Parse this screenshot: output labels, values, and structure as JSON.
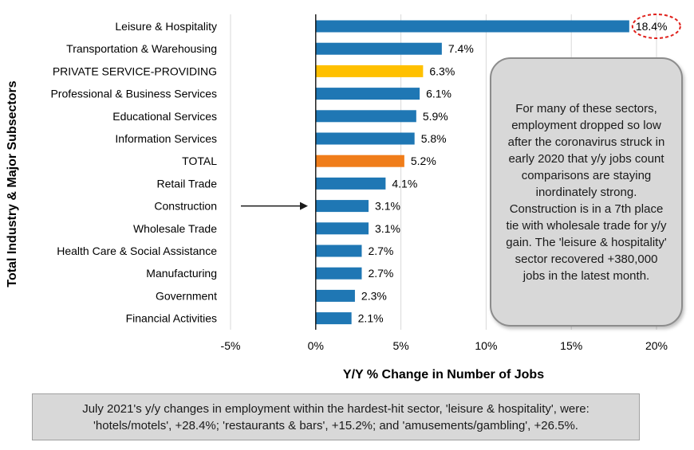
{
  "chart_data": {
    "type": "bar",
    "orientation": "horizontal",
    "xlabel": "Y/Y % Change in Number of Jobs",
    "ylabel": "Total Industry & Major Subsectors",
    "xlim": [
      -5,
      20
    ],
    "xticks": [
      "-5%",
      "0%",
      "5%",
      "10%",
      "15%",
      "20%"
    ],
    "tick_values": [
      -5,
      0,
      5,
      10,
      15,
      20
    ],
    "categories": [
      "Leisure & Hospitality",
      "Transportation & Warehousing",
      "PRIVATE SERVICE-PROVIDING",
      "Professional & Business Services",
      "Educational Services",
      "Information Services",
      "TOTAL",
      "Retail Trade",
      "Construction",
      "Wholesale Trade",
      "Health Care & Social Assistance",
      "Manufacturing",
      "Government",
      "Financial Activities"
    ],
    "values": [
      18.4,
      7.4,
      6.3,
      6.1,
      5.9,
      5.8,
      5.2,
      4.1,
      3.1,
      3.1,
      2.7,
      2.7,
      2.3,
      2.1
    ],
    "labels": [
      "18.4%",
      "7.4%",
      "6.3%",
      "6.1%",
      "5.9%",
      "5.8%",
      "5.2%",
      "4.1%",
      "3.1%",
      "3.1%",
      "2.7%",
      "2.7%",
      "2.3%",
      "2.1%"
    ],
    "bar_colors": [
      "#1f77b4",
      "#1f77b4",
      "#ffc000",
      "#1f77b4",
      "#1f77b4",
      "#1f77b4",
      "#f07d1a",
      "#1f77b4",
      "#1f77b4",
      "#1f77b4",
      "#1f77b4",
      "#1f77b4",
      "#1f77b4",
      "#1f77b4"
    ],
    "circled_label": "18.4%",
    "arrow_to": "Construction"
  },
  "annotation": {
    "text": "For many of these sectors, employment dropped so low after the coronavirus struck in early 2020 that y/y jobs count comparisons are staying inordinately strong. Construction is in a 7th place tie with wholesale trade for y/y gain. The 'leisure & hospitality' sector recovered +380,000 jobs in the latest month."
  },
  "footnote": {
    "text": "July 2021's y/y changes in employment within the hardest-hit sector, 'leisure & hospitality', were: 'hotels/motels', +28.4%; 'restaurants & bars', +15.2%; and 'amusements/gambling', +26.5%."
  },
  "colors": {
    "bar": "#1f77b4",
    "highlight_private": "#ffc000",
    "highlight_total": "#f07d1a",
    "circle": "#e0201b",
    "grid": "#d9d9d9"
  }
}
